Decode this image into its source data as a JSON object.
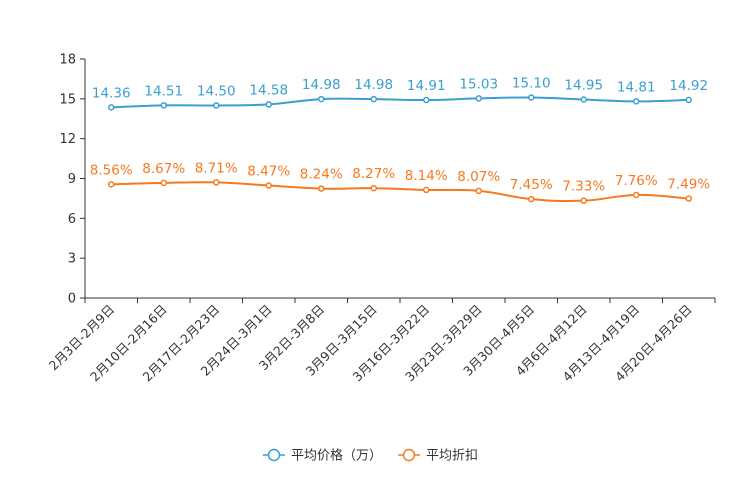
{
  "chart_data": {
    "type": "line",
    "categories": [
      "2月3日-2月9日",
      "2月10日-2月16日",
      "2月17日-2月23日",
      "2月24日-3月1日",
      "3月2日-3月8日",
      "3月9日-3月15日",
      "3月16日-3月22日",
      "3月23日-3月29日",
      "3月30日-4月5日",
      "4月6日-4月12日",
      "4月13日-4月19日",
      "4月20日-4月26日"
    ],
    "series": [
      {
        "name": "平均价格（万）",
        "color": "#3a9fd0",
        "values": [
          14.36,
          14.51,
          14.5,
          14.58,
          14.98,
          14.98,
          14.91,
          15.03,
          15.1,
          14.95,
          14.81,
          14.92
        ],
        "labels": [
          "14.36",
          "14.51",
          "14.50",
          "14.58",
          "14.98",
          "14.98",
          "14.91",
          "15.03",
          "15.10",
          "14.95",
          "14.81",
          "14.92"
        ]
      },
      {
        "name": "平均折扣",
        "color": "#f47a20",
        "values": [
          8.56,
          8.67,
          8.71,
          8.47,
          8.24,
          8.27,
          8.14,
          8.07,
          7.45,
          7.33,
          7.76,
          7.49
        ],
        "labels": [
          "8.56%",
          "8.67%",
          "8.71%",
          "8.47%",
          "8.24%",
          "8.27%",
          "8.14%",
          "8.07%",
          "7.45%",
          "7.33%",
          "7.76%",
          "7.49%"
        ]
      }
    ],
    "y_ticks": [
      "0",
      "3",
      "6",
      "9",
      "12",
      "15",
      "18"
    ],
    "ylim": [
      0,
      18
    ],
    "title": "",
    "xlabel": "",
    "ylabel": "",
    "grid": false,
    "legend_position": "bottom-center"
  }
}
